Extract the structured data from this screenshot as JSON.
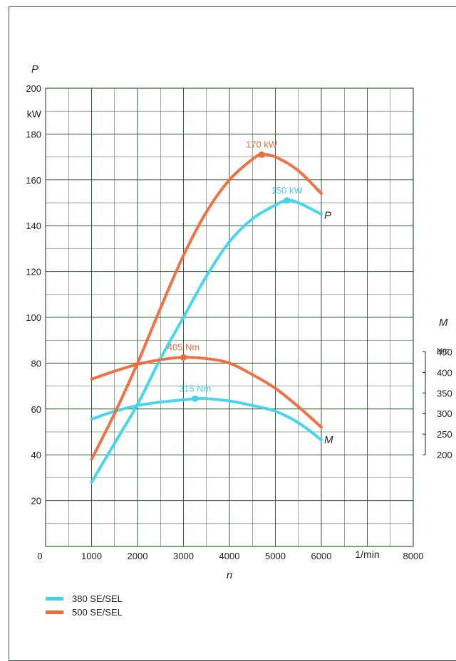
{
  "colors": {
    "series_380": "#3fd3ec",
    "series_500": "#ef6a3a",
    "grid": "#2f5a34",
    "text": "#222222"
  },
  "chart_data": {
    "type": "line",
    "x_axis": {
      "label": "n",
      "unit_label": "1/min",
      "range": [
        0,
        8000
      ],
      "ticks": [
        {
          "value": 0,
          "label": "0"
        },
        {
          "value": 1000,
          "label": "1000"
        },
        {
          "value": 2000,
          "label": "2000"
        },
        {
          "value": 3000,
          "label": "3000"
        },
        {
          "value": 4000,
          "label": "4000"
        },
        {
          "value": 5000,
          "label": "5000"
        },
        {
          "value": 6000,
          "label": "6000"
        },
        {
          "value": 8000,
          "label": "8000"
        }
      ]
    },
    "y_axis_left": {
      "label": "P",
      "unit": "kW",
      "range": [
        0,
        200
      ],
      "ticks": [
        "20",
        "40",
        "60",
        "80",
        "100",
        "120",
        "140",
        "160",
        "180",
        "200"
      ]
    },
    "y_axis_right": {
      "label": "M",
      "unit": "Nm",
      "range": [
        200,
        450
      ],
      "ticks": [
        "200",
        "250",
        "300",
        "350",
        "400",
        "450"
      ]
    },
    "grid": true,
    "legend_position": "bottom-left",
    "curve_labels": {
      "power": "P",
      "torque": "M"
    },
    "series": [
      {
        "name": "380 SE/SEL",
        "color": "#3fd3ec",
        "power": [
          [
            1000,
            28
          ],
          [
            1500,
            45
          ],
          [
            2000,
            62
          ],
          [
            2500,
            82
          ],
          [
            3000,
            100
          ],
          [
            3500,
            118
          ],
          [
            4000,
            133
          ],
          [
            4500,
            143
          ],
          [
            5000,
            149
          ],
          [
            5250,
            151
          ],
          [
            5500,
            150
          ],
          [
            6000,
            145
          ]
        ],
        "torque": [
          [
            1000,
            55.5
          ],
          [
            1500,
            59
          ],
          [
            2000,
            61.5
          ],
          [
            2500,
            63
          ],
          [
            3000,
            64
          ],
          [
            3250,
            64.5
          ],
          [
            3500,
            64.5
          ],
          [
            4000,
            63.5
          ],
          [
            4500,
            61.5
          ],
          [
            5000,
            59
          ],
          [
            5500,
            54
          ],
          [
            6000,
            46.5
          ]
        ],
        "peak_power": {
          "x": 5250,
          "y": 151,
          "label": "150 kW"
        },
        "peak_torque": {
          "x": 3250,
          "y": 64.5,
          "label": "315 Nm"
        }
      },
      {
        "name": "500 SE/SEL",
        "color": "#ef6a3a",
        "power": [
          [
            1000,
            38
          ],
          [
            1500,
            58
          ],
          [
            2000,
            80
          ],
          [
            2500,
            104
          ],
          [
            3000,
            127
          ],
          [
            3500,
            146
          ],
          [
            4000,
            160
          ],
          [
            4500,
            169
          ],
          [
            4700,
            171
          ],
          [
            5000,
            170
          ],
          [
            5500,
            164
          ],
          [
            6000,
            154
          ]
        ],
        "torque": [
          [
            1000,
            73
          ],
          [
            1500,
            76.5
          ],
          [
            2000,
            79.5
          ],
          [
            2500,
            81.5
          ],
          [
            3000,
            82.5
          ],
          [
            3500,
            82
          ],
          [
            4000,
            80
          ],
          [
            4500,
            75
          ],
          [
            5000,
            69
          ],
          [
            5500,
            61
          ],
          [
            6000,
            52
          ]
        ],
        "peak_power": {
          "x": 4700,
          "y": 171,
          "label": "170 kW"
        },
        "peak_torque": {
          "x": 3000,
          "y": 82.5,
          "label": "405 Nm"
        }
      }
    ]
  }
}
